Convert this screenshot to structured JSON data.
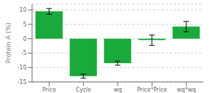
{
  "chart_data": {
    "type": "bar",
    "ylabel": "Protein A (%)",
    "categories": [
      "Price",
      "Cycle",
      "wq",
      "Price*Price",
      "wq*wq"
    ],
    "values": [
      9.5,
      -13.0,
      -8.5,
      -0.5,
      4.2
    ],
    "errors_up": [
      1.0,
      0.7,
      0.7,
      1.8,
      1.8
    ],
    "errors_down": [
      1.0,
      0.7,
      0.7,
      1.8,
      1.8
    ],
    "color": "#1aaa3c",
    "ylim": [
      -15,
      12
    ],
    "yticks": [
      -15,
      -10,
      -5,
      0,
      5,
      10
    ],
    "grid": true
  }
}
